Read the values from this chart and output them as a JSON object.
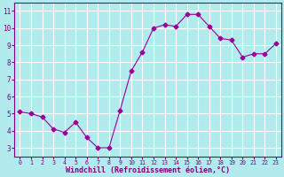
{
  "x": [
    0,
    1,
    2,
    3,
    4,
    5,
    6,
    7,
    8,
    9,
    10,
    11,
    12,
    13,
    14,
    15,
    16,
    17,
    18,
    19,
    20,
    21,
    22,
    23
  ],
  "y": [
    5.1,
    5.0,
    4.8,
    4.1,
    3.9,
    4.5,
    3.6,
    3.0,
    3.0,
    5.2,
    7.5,
    8.6,
    10.0,
    10.2,
    10.1,
    10.8,
    10.8,
    10.1,
    9.4,
    9.3,
    8.3,
    8.5,
    8.5,
    9.1
  ],
  "line_color": "#990099",
  "marker": "D",
  "marker_size": 2.5,
  "bg_color": "#b2ebee",
  "grid_color": "#ffffff",
  "xlabel": "Windchill (Refroidissement éolien,°C)",
  "xlabel_color": "#800080",
  "tick_color": "#800080",
  "ylim": [
    2.5,
    11.5
  ],
  "xlim": [
    -0.5,
    23.5
  ],
  "yticks": [
    3,
    4,
    5,
    6,
    7,
    8,
    9,
    10,
    11
  ],
  "xticks": [
    0,
    1,
    2,
    3,
    4,
    5,
    6,
    7,
    8,
    9,
    10,
    11,
    12,
    13,
    14,
    15,
    16,
    17,
    18,
    19,
    20,
    21,
    22,
    23
  ],
  "font_family": "monospace",
  "xtick_fontsize": 4.8,
  "ytick_fontsize": 5.5,
  "xlabel_fontsize": 6.0
}
